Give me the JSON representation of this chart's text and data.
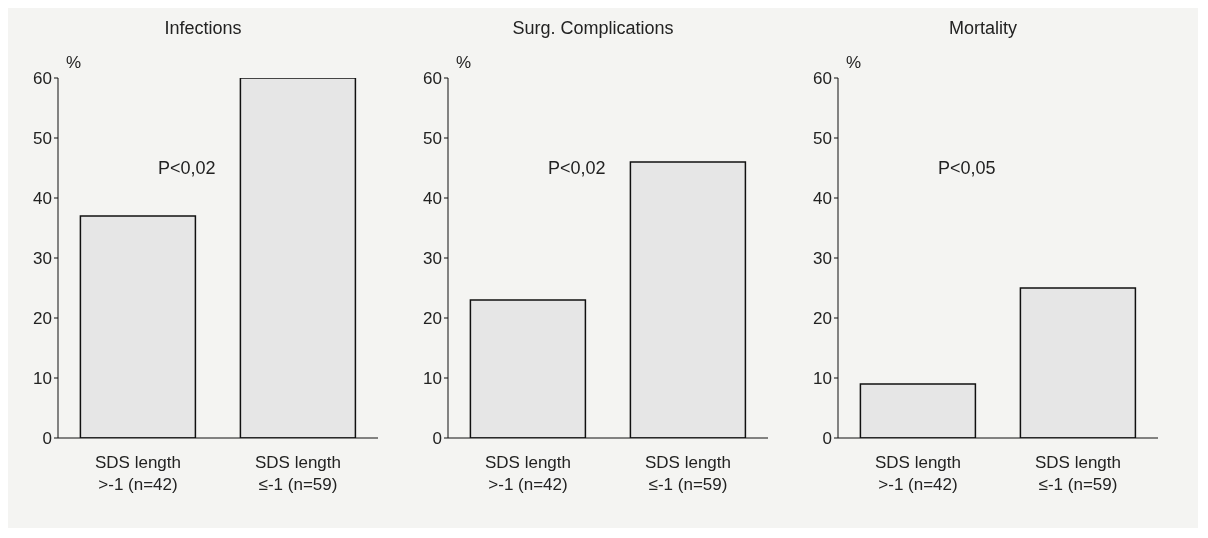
{
  "chart_data": [
    {
      "type": "bar",
      "title": "Infections",
      "ylabel": "%",
      "categories": [
        "SDS length\n>-1 (n=42)",
        "SDS length\n≤-1 (n=59)"
      ],
      "values": [
        37,
        60
      ],
      "color": "#e6e6e6",
      "ylim": [
        0,
        60
      ],
      "yticks": [
        0,
        10,
        20,
        30,
        40,
        50,
        60
      ],
      "grid": false,
      "annotations": [
        "P<0,02"
      ]
    },
    {
      "type": "bar",
      "title": "Surg. Complications",
      "ylabel": "%",
      "categories": [
        "SDS length\n>-1 (n=42)",
        "SDS length\n≤-1 (n=59)"
      ],
      "values": [
        23,
        46
      ],
      "color": "#e6e6e6",
      "ylim": [
        0,
        60
      ],
      "yticks": [
        0,
        10,
        20,
        30,
        40,
        50,
        60
      ],
      "grid": false,
      "annotations": [
        "P<0,02"
      ]
    },
    {
      "type": "bar",
      "title": "Mortality",
      "ylabel": "%",
      "categories": [
        "SDS length\n>-1 (n=42)",
        "SDS length\n≤-1 (n=59)"
      ],
      "values": [
        9,
        25
      ],
      "color": "#e6e6e6",
      "ylim": [
        0,
        60
      ],
      "yticks": [
        0,
        10,
        20,
        30,
        40,
        50,
        60
      ],
      "grid": false,
      "annotations": [
        "P<0,05"
      ]
    }
  ]
}
